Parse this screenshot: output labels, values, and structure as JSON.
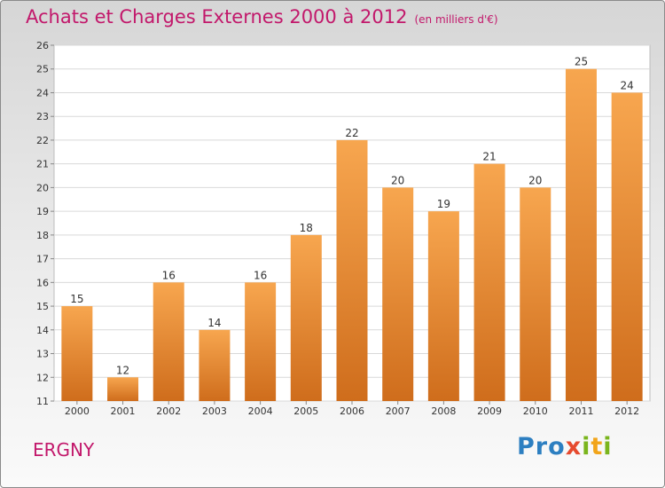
{
  "header": {
    "title": "Achats et Charges Externes 2000 à 2012",
    "subtitle": "(en milliers d'€)"
  },
  "footer": {
    "commune": "ERGNY",
    "logo_letters": [
      {
        "ch": "P",
        "color": "#2d7fc1"
      },
      {
        "ch": "r",
        "color": "#2d7fc1"
      },
      {
        "ch": "o",
        "color": "#2d7fc1"
      },
      {
        "ch": "x",
        "color": "#e64a2e"
      },
      {
        "ch": "i",
        "color": "#7ab51d"
      },
      {
        "ch": "t",
        "color": "#f2a51a"
      },
      {
        "ch": "i",
        "color": "#7ab51d"
      }
    ]
  },
  "chart_data": {
    "type": "bar",
    "title": "Achats et Charges Externes 2000 à 2012",
    "subtitle": "(en milliers d'€)",
    "categories": [
      "2000",
      "2001",
      "2002",
      "2003",
      "2004",
      "2005",
      "2006",
      "2007",
      "2008",
      "2009",
      "2010",
      "2011",
      "2012"
    ],
    "values": [
      15,
      12,
      16,
      14,
      16,
      18,
      22,
      20,
      19,
      21,
      20,
      25,
      24
    ],
    "ylim": [
      11,
      26
    ],
    "yticks": [
      11,
      12,
      13,
      14,
      15,
      16,
      17,
      18,
      19,
      20,
      21,
      22,
      23,
      24,
      25,
      26
    ],
    "grid": true,
    "bar_color_top": "#f7a64f",
    "bar_color_bottom": "#cf6d1c"
  }
}
